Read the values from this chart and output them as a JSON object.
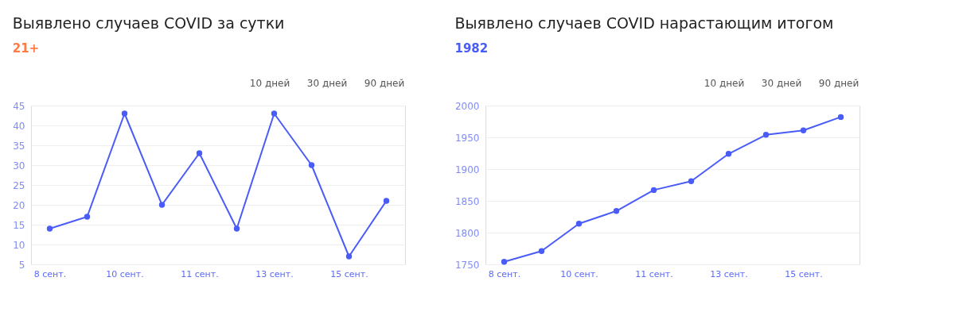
{
  "chart_data": [
    {
      "type": "line",
      "title": "Выявлено случаев COVID за сутки",
      "subtitle": "21+",
      "categories": [
        "8 сент.",
        null,
        "10 сент.",
        null,
        "11 сент.",
        null,
        "13 сент.",
        null,
        "15 сент.",
        null
      ],
      "series": [
        {
          "color": "#4a5cf7",
          "values": [
            14,
            17,
            43,
            20,
            33,
            14,
            43,
            30,
            7,
            21
          ]
        }
      ],
      "ylim": [
        5,
        45
      ],
      "yticks": [
        5,
        10,
        15,
        20,
        25,
        30,
        35,
        40,
        45
      ],
      "grid": "y",
      "marker": "circle",
      "line_style": "solid",
      "annotations": [
        "10 дней",
        "30 дней",
        "90 дней"
      ]
    },
    {
      "type": "line",
      "title": "Выявлено случаев COVID нарастающим итогом",
      "subtitle": "1982",
      "categories": [
        "8 сент.",
        null,
        "10 сент.",
        null,
        "11 сент.",
        null,
        "13 сент.",
        null,
        "15 сент.",
        null
      ],
      "series": [
        {
          "color": "#4a5cf7",
          "values": [
            1754,
            1771,
            1814,
            1834,
            1867,
            1881,
            1924,
            1954,
            1961,
            1982
          ]
        }
      ],
      "ylim": [
        1750,
        2000
      ],
      "yticks": [
        1750,
        1800,
        1850,
        1900,
        1950,
        2000
      ],
      "grid": "y",
      "marker": "circle",
      "line_style": "solid",
      "annotations": [
        "10 дней",
        "30 дней",
        "90 дней"
      ]
    }
  ]
}
